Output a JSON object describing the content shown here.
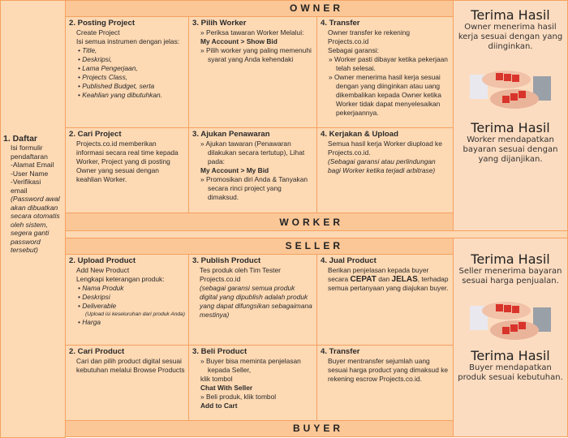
{
  "headers": {
    "owner": "OWNER",
    "worker": "WORKER",
    "seller": "SELLER",
    "buyer": "BUYER"
  },
  "daftar": {
    "title": "1. Daftar",
    "lines": [
      {
        "t": "Isi formulir",
        "s": "p"
      },
      {
        "t": "pendaftaran",
        "s": "p"
      },
      {
        "t": "-Alamat Email",
        "s": "p"
      },
      {
        "t": "-User Name",
        "s": "p"
      },
      {
        "t": "-Verifikasi",
        "s": "p"
      },
      {
        "t": "email",
        "s": "p"
      },
      {
        "t": "(Password awal akan dibuatkan secara otomatis oleh sistem, segera ganti password tersebut)",
        "s": "i"
      }
    ]
  },
  "cells": [
    {
      "id": "posting-project",
      "title": "2. Posting Project",
      "lines": [
        {
          "t": "Create Project",
          "s": "p"
        },
        {
          "t": "Isi semua instrumen dengan jelas:",
          "s": "p"
        },
        {
          "t": "• Title,",
          "s": "bul i"
        },
        {
          "t": "• Deskripsi,",
          "s": "bul i"
        },
        {
          "t": "• Lama Pengerjaan,",
          "s": "bul i"
        },
        {
          "t": "• Projects Class,",
          "s": "bul i"
        },
        {
          "t": "• Published Budget, serta",
          "s": "bul i"
        },
        {
          "t": "• Keahlian yang dibutuhkan.",
          "s": "bul i"
        }
      ]
    },
    {
      "id": "pilih-worker",
      "title": "3. Pilih Worker",
      "lines": [
        {
          "t": "» Periksa tawaran Worker Melalui:",
          "s": "arr"
        },
        {
          "t": "My Account > Show Bid",
          "s": "arr b"
        },
        {
          "t": "» Pilih worker yang paling memenuhi syarat yang  Anda kehendaki",
          "s": "arr"
        }
      ]
    },
    {
      "id": "owner-transfer",
      "title": "4. Transfer",
      "lines": [
        {
          "t": "Owner transfer ke rekening Projects.co.id",
          "s": "p"
        },
        {
          "t": "Sebagai garansi:",
          "s": "p"
        },
        {
          "t": "» Worker pasti dibayar ketika pekerjaan telah selesai.",
          "s": "arr"
        },
        {
          "t": "» Owner menerima hasil kerja sesuai dengan yang diinginkan atau uang dikembalikan kepada Owner ketika Worker tidak dapat menyelesaikan pekerjaannya.",
          "s": "arr"
        }
      ]
    },
    {
      "id": "cari-project",
      "title": "2. Cari Project",
      "lines": [
        {
          "t": "Projects.co.id memberikan informasi secara real time kepada Worker, Project yang di posting Owner yang sesuai dengan keahlian Worker.",
          "s": "p"
        }
      ]
    },
    {
      "id": "ajukan-penawaran",
      "title": "3. Ajukan Penawaran",
      "lines": [
        {
          "t": "» Ajukan tawaran (Penawaran dilakukan secara tertutup), Lihat pada:",
          "s": "arr"
        },
        {
          "t": "My Account > My Bid",
          "s": "arr b"
        },
        {
          "t": "» Promosikan diri Anda & Tanyakan secara rinci project yang dimaksud.",
          "s": "arr"
        }
      ]
    },
    {
      "id": "kerjakan-upload",
      "title": "4. Kerjakan & Upload",
      "lines": [
        {
          "t": "Semua hasil kerja Worker diupload ke Projects.co.id.",
          "s": "p"
        },
        {
          "t": "(Sebagai garansi atau perlindungan bagi Worker ketika terjadi arbitrase)",
          "s": "p i"
        }
      ]
    },
    {
      "id": "upload-product",
      "title": "2. Upload Product",
      "lines": [
        {
          "t": "Add New Product",
          "s": "p"
        },
        {
          "t": "Lengkapi keterangan produk:",
          "s": "p"
        },
        {
          "t": "•  Nama Produk",
          "s": "bul i"
        },
        {
          "t": "•  Deskripsi",
          "s": "bul i"
        },
        {
          "t": "•  Deliverable",
          "s": "bul i"
        },
        {
          "t": "(Upload isi keseluruhan dari produk Anda)",
          "s": "sm"
        },
        {
          "t": "•  Harga",
          "s": "bul i"
        }
      ]
    },
    {
      "id": "publish-product",
      "title": "3. Publish Product",
      "lines": [
        {
          "t": "Tes produk oleh Tim Tester Projects.co.id",
          "s": "p"
        },
        {
          "t": "(sebagai garansi semua produk digital yang dipublish adalah produk yang dapat difungsikan sebagaimana mestinya)",
          "s": "p i"
        }
      ]
    },
    {
      "id": "jual-product",
      "title": "4. Jual Product",
      "lines": [
        {
          "parts": [
            {
              "t": "Berikan penjelasan kepada buyer secara ",
              "s": ""
            },
            {
              "t": "CEPAT",
              "s": "big"
            },
            {
              "t": " dan ",
              "s": ""
            },
            {
              "t": "JELAS",
              "s": "big"
            },
            {
              "t": ", terhadap semua pertanyaan yang diajukan buyer.",
              "s": ""
            }
          ],
          "s": "p"
        }
      ]
    },
    {
      "id": "cari-product",
      "title": "2. Cari Product",
      "lines": [
        {
          "t": "Cari dan pilih product digital sesuai kebutuhan melalui Browse Products",
          "s": "p"
        }
      ]
    },
    {
      "id": "beli-product",
      "title": "3. Beli Product",
      "lines": [
        {
          "t": "» Buyer bisa meminta penjelasan kepada Seller,",
          "s": "arr"
        },
        {
          "t": "klik tombol",
          "s": "arr"
        },
        {
          "t": "Chat With Seller",
          "s": "arr b"
        },
        {
          "t": "» Beli produk, klik tombol",
          "s": "arr"
        },
        {
          "t": "Add to Cart",
          "s": "arr b"
        }
      ]
    },
    {
      "id": "buyer-transfer",
      "title": "4. Transfer",
      "lines": [
        {
          "t": "Buyer mentransfer sejumlah uang sesuai harga product yang dimaksud ke rekening escrow Projects.co.id.",
          "s": "p"
        }
      ]
    }
  ],
  "results": [
    {
      "title": "Terima Hasil",
      "desc": "Owner menerima hasil kerja sesuai dengan yang diinginkan."
    },
    {
      "title": "Terima Hasil",
      "desc": "Worker mendapatkan bayaran sesuai dengan yang dijanjikan."
    },
    {
      "title": "Terima Hasil",
      "desc": "Seller menerima bayaran sesuai harga penjualan."
    },
    {
      "title": "Terima Hasil",
      "desc": "Buyer mendapatkan produk sesuai kebutuhan."
    }
  ],
  "colors": {
    "panel": "#fdd9b4",
    "header": "#fbc797",
    "border": "#f5a160"
  }
}
